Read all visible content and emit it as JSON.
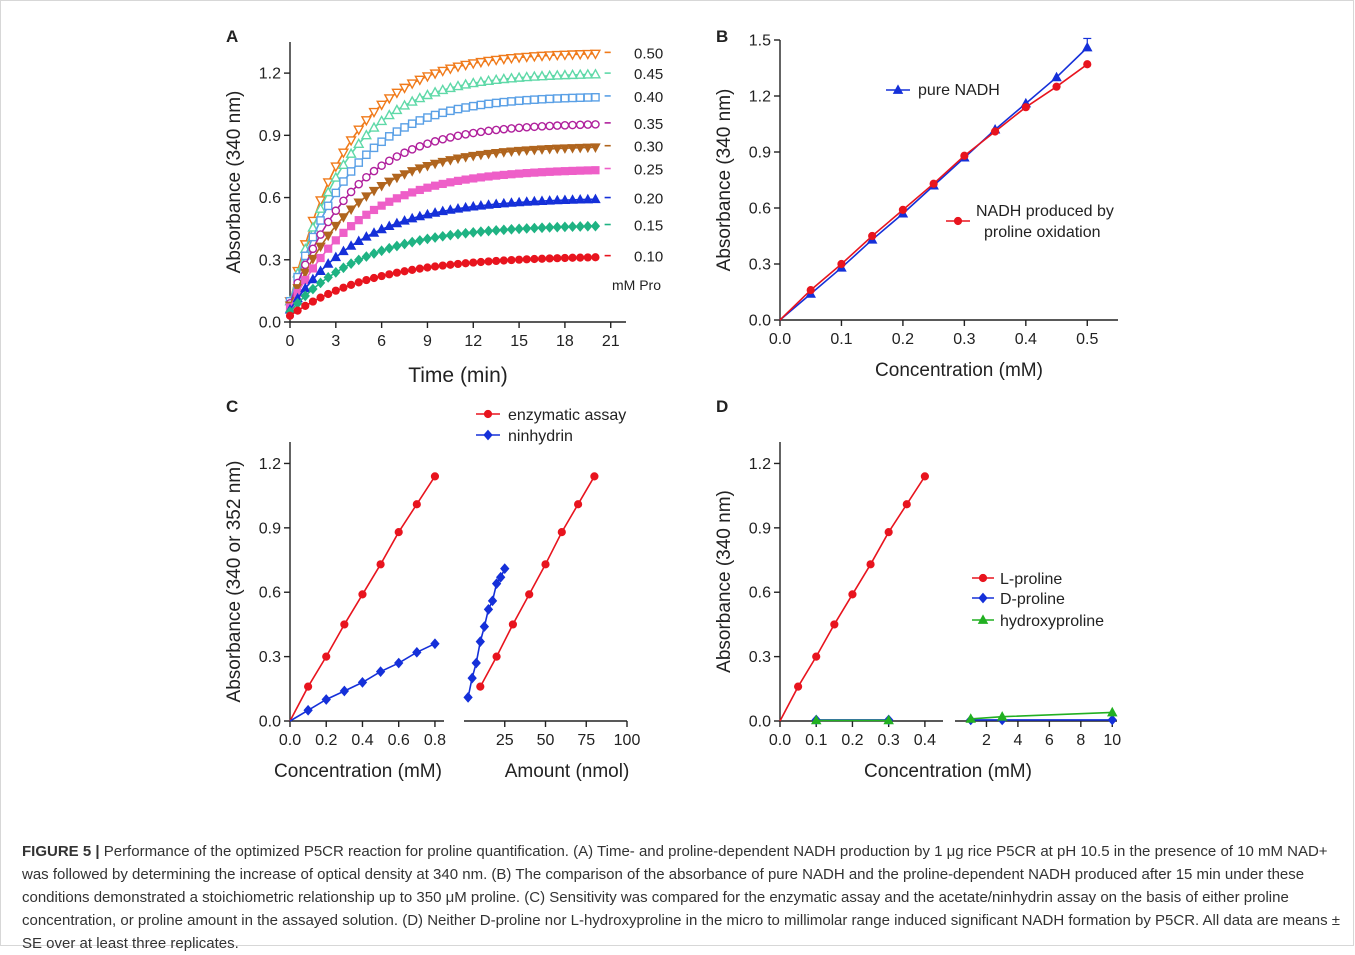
{
  "caption": {
    "figure_label": "FIGURE 5 |",
    "text": "Performance of the optimized P5CR reaction for proline quantification. (A) Time- and proline-dependent NADH production by 1 μg rice P5CR at pH 10.5 in the presence of 10 mM NAD+ was followed by determining the increase of optical density at 340 nm. (B) The comparison of the absorbance of pure NADH and the proline-dependent NADH produced after 15 min under these conditions demonstrated a stoichiometric relationship up to 350 μM proline. (C) Sensitivity was compared for the enzymatic assay and the acetate/ninhydrin assay on the basis of either proline concentration, or proline amount in the assayed solution. (D) Neither D-proline nor L-hydroxyproline in the micro to millimolar range induced significant NADH formation by P5CR. All data are means ± SE over at least three replicates."
  },
  "chart_data": [
    {
      "panel": "A",
      "type": "line",
      "xlabel": "Time (min)",
      "ylabel": "Absorbance (340 nm)",
      "xlim": [
        0,
        22
      ],
      "ylim": [
        0,
        1.35
      ],
      "xticks": [
        "0",
        "3",
        "6",
        "9",
        "12",
        "15",
        "18",
        "21"
      ],
      "yticks": [
        "0.0",
        "0.3",
        "0.6",
        "0.9",
        "1.2"
      ],
      "legend_unit": "mM Pro",
      "series": [
        {
          "name": "0.50",
          "color": "#f07a1a",
          "marker": "tri-down-open",
          "start": 0.1,
          "plateau": 1.3,
          "k": 0.26
        },
        {
          "name": "0.45",
          "color": "#5fd9a8",
          "marker": "tri-up-open",
          "start": 0.1,
          "plateau": 1.2,
          "k": 0.26
        },
        {
          "name": "0.40",
          "color": "#5aa0e6",
          "marker": "square-open",
          "start": 0.1,
          "plateau": 1.09,
          "k": 0.25
        },
        {
          "name": "0.35",
          "color": "#b0209c",
          "marker": "circle-open",
          "start": 0.09,
          "plateau": 0.96,
          "k": 0.24
        },
        {
          "name": "0.30",
          "color": "#b0651e",
          "marker": "tri-down",
          "start": 0.08,
          "plateau": 0.85,
          "k": 0.23
        },
        {
          "name": "0.25",
          "color": "#ee5fc8",
          "marker": "square",
          "start": 0.07,
          "plateau": 0.74,
          "k": 0.22
        },
        {
          "name": "0.20",
          "color": "#1530d9",
          "marker": "tri-up",
          "start": 0.06,
          "plateau": 0.6,
          "k": 0.21
        },
        {
          "name": "0.15",
          "color": "#1fb383",
          "marker": "diamond",
          "start": 0.05,
          "plateau": 0.47,
          "k": 0.2
        },
        {
          "name": "0.10",
          "color": "#e8141e",
          "marker": "circle",
          "start": 0.03,
          "plateau": 0.32,
          "k": 0.18
        }
      ]
    },
    {
      "panel": "B",
      "type": "line",
      "xlabel": "Concentration (mM)",
      "ylabel": "Absorbance (340 nm)",
      "xlim": [
        0,
        0.55
      ],
      "ylim": [
        0,
        1.5
      ],
      "xticks": [
        "0.0",
        "0.1",
        "0.2",
        "0.3",
        "0.4",
        "0.5"
      ],
      "yticks": [
        "0.0",
        "0.3",
        "0.6",
        "0.9",
        "1.2",
        "1.5"
      ],
      "series": [
        {
          "name": "pure NADH",
          "color": "#1530d9",
          "marker": "tri-up",
          "x": [
            0,
            0.05,
            0.1,
            0.15,
            0.2,
            0.25,
            0.3,
            0.35,
            0.4,
            0.45,
            0.5
          ],
          "y": [
            0,
            0.14,
            0.28,
            0.43,
            0.57,
            0.72,
            0.87,
            1.02,
            1.16,
            1.3,
            1.46
          ]
        },
        {
          "name": "NADH produced by proline oxidation",
          "color": "#e8141e",
          "marker": "circle",
          "x": [
            0,
            0.05,
            0.1,
            0.15,
            0.2,
            0.25,
            0.3,
            0.35,
            0.4,
            0.45,
            0.5
          ],
          "y": [
            0,
            0.16,
            0.3,
            0.45,
            0.59,
            0.73,
            0.88,
            1.01,
            1.14,
            1.25,
            1.37
          ]
        }
      ]
    },
    {
      "panel": "C",
      "type": "line",
      "ylabel": "Absorbance (340 or 352 nm)",
      "ylim": [
        0,
        1.3
      ],
      "yticks": [
        "0.0",
        "0.3",
        "0.6",
        "0.9",
        "1.2"
      ],
      "left_axis": {
        "xlabel": "Concentration (mM)",
        "xlim": [
          0,
          0.85
        ],
        "xticks": [
          "0.0",
          "0.2",
          "0.4",
          "0.6",
          "0.8"
        ]
      },
      "right_axis": {
        "xlabel": "Amount (nmol)",
        "xlim": [
          0,
          100
        ],
        "xticks": [
          "25",
          "50",
          "75",
          "100"
        ]
      },
      "series": [
        {
          "name": "enzymatic assay",
          "color": "#e8141e",
          "marker": "circle",
          "left_x": [
            0,
            0.1,
            0.2,
            0.3,
            0.4,
            0.5,
            0.6,
            0.7,
            0.8
          ],
          "left_y": [
            0,
            0.16,
            0.3,
            0.45,
            0.59,
            0.73,
            0.88,
            1.01,
            1.14
          ],
          "right_x": [
            10,
            20,
            30,
            40,
            50,
            60,
            70,
            80
          ],
          "right_y": [
            0.16,
            0.3,
            0.45,
            0.59,
            0.73,
            0.88,
            1.01,
            1.14
          ]
        },
        {
          "name": "ninhydrin",
          "color": "#1530d9",
          "marker": "diamond",
          "left_x": [
            0,
            0.1,
            0.2,
            0.3,
            0.4,
            0.5,
            0.6,
            0.7,
            0.8
          ],
          "left_y": [
            0,
            0.05,
            0.1,
            0.14,
            0.18,
            0.23,
            0.27,
            0.32,
            0.36
          ],
          "right_x": [
            2.5,
            5,
            7.5,
            10,
            12.5,
            15,
            17.5,
            20,
            22.5,
            25
          ],
          "right_y": [
            0.11,
            0.2,
            0.27,
            0.37,
            0.44,
            0.52,
            0.56,
            0.64,
            0.67,
            0.71
          ]
        }
      ]
    },
    {
      "panel": "D",
      "type": "line",
      "xlabel": "Concentration (mM)",
      "ylabel": "Absorbance (340 nm)",
      "ylim": [
        0,
        1.3
      ],
      "yticks": [
        "0.0",
        "0.3",
        "0.6",
        "0.9",
        "1.2"
      ],
      "left_axis": {
        "xlim": [
          0,
          0.45
        ],
        "xticks": [
          "0.0",
          "0.1",
          "0.2",
          "0.3",
          "0.4"
        ]
      },
      "right_axis": {
        "xlim": [
          0,
          10.3
        ],
        "xticks": [
          "2",
          "4",
          "6",
          "8",
          "10"
        ]
      },
      "series": [
        {
          "name": "L-proline",
          "color": "#e8141e",
          "marker": "circle",
          "left_x": [
            0,
            0.05,
            0.1,
            0.15,
            0.2,
            0.25,
            0.3,
            0.35,
            0.4
          ],
          "left_y": [
            0,
            0.16,
            0.3,
            0.45,
            0.59,
            0.73,
            0.88,
            1.01,
            1.14
          ],
          "right_x": [],
          "right_y": []
        },
        {
          "name": "D-proline",
          "color": "#1530d9",
          "marker": "diamond",
          "left_x": [
            0.1,
            0.3
          ],
          "left_y": [
            0.005,
            0.005
          ],
          "right_x": [
            1,
            3,
            10
          ],
          "right_y": [
            0.005,
            0.005,
            0.005
          ]
        },
        {
          "name": "hydroxyproline",
          "color": "#22b022",
          "marker": "tri-up",
          "left_x": [
            0.1,
            0.3
          ],
          "left_y": [
            0.003,
            0.003
          ],
          "right_x": [
            1,
            3,
            10
          ],
          "right_y": [
            0.01,
            0.02,
            0.04
          ]
        }
      ]
    }
  ]
}
